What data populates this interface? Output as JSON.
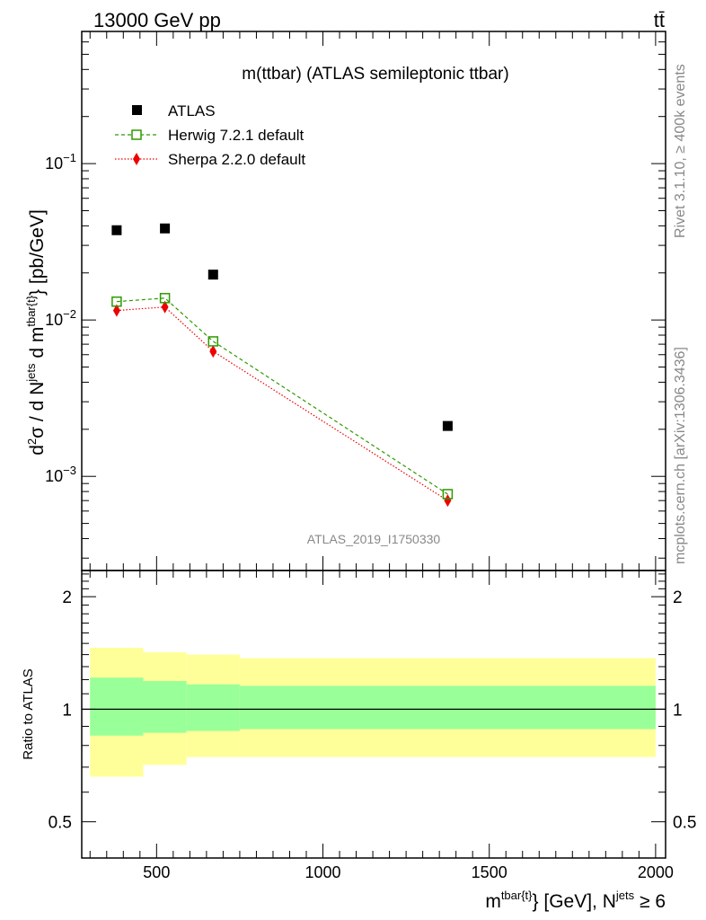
{
  "header": {
    "energy": "13000 GeV pp",
    "process": "tt̄"
  },
  "side": {
    "rivet": "Rivet 3.1.10, ≥ 400k events",
    "mcplots": "mcplots.cern.ch [arXiv:1306.3436]"
  },
  "watermark": "ATLAS_2019_I1750330",
  "colors": {
    "herwig": "#2e9a00",
    "sherpa": "#ee0000",
    "band_inner": "#99ff99",
    "band_outer": "#ffff99",
    "data": "#000000"
  },
  "chart_data": [
    {
      "type": "scatter",
      "title": "m(ttbar) (ATLAS semileptonic ttbar)",
      "ylabel": "d²σ / d N^jets d m^tbar{t} [pb/GeV]",
      "xlabel": "",
      "y_scale": "log",
      "xlim": [
        275,
        2030
      ],
      "ylim": [
        0.00025,
        0.7
      ],
      "y_ticks": [
        "10^-3",
        "10^-2",
        "10^-1"
      ],
      "series": [
        {
          "name": "ATLAS",
          "marker": "square-filled",
          "x": [
            380,
            525,
            670,
            1375
          ],
          "y": [
            0.0375,
            0.0385,
            0.0195,
            0.0021
          ]
        },
        {
          "name": "Herwig 7.2.1 default",
          "marker": "square-open",
          "line": "dashed",
          "x": [
            380,
            525,
            670,
            1375
          ],
          "y": [
            0.0131,
            0.0138,
            0.0073,
            0.00077
          ]
        },
        {
          "name": "Sherpa 2.2.0 default",
          "marker": "diamond-filled",
          "line": "dotted",
          "x": [
            380,
            525,
            670,
            1375
          ],
          "y": [
            0.0115,
            0.0121,
            0.0063,
            0.0007
          ]
        }
      ]
    },
    {
      "type": "area",
      "ylabel": "Ratio to ATLAS",
      "xlabel": "m^tbar{t} [GeV], N^jets ≥ 6",
      "xlim": [
        275,
        2030
      ],
      "ylim": [
        0.4,
        2.35
      ],
      "y_scale": "log",
      "x_ticks": [
        "500",
        "1000",
        "1500",
        "2000"
      ],
      "y_ticks": [
        "0.5",
        "1",
        "2"
      ],
      "bins": [
        300,
        460,
        590,
        750,
        2000
      ],
      "band_outer": {
        "low": [
          0.66,
          0.71,
          0.745,
          0.745
        ],
        "high": [
          1.46,
          1.42,
          1.4,
          1.37
        ]
      },
      "band_inner": {
        "low": [
          0.85,
          0.865,
          0.875,
          0.885
        ],
        "high": [
          1.215,
          1.19,
          1.165,
          1.155
        ]
      },
      "reference_line": 1
    }
  ]
}
